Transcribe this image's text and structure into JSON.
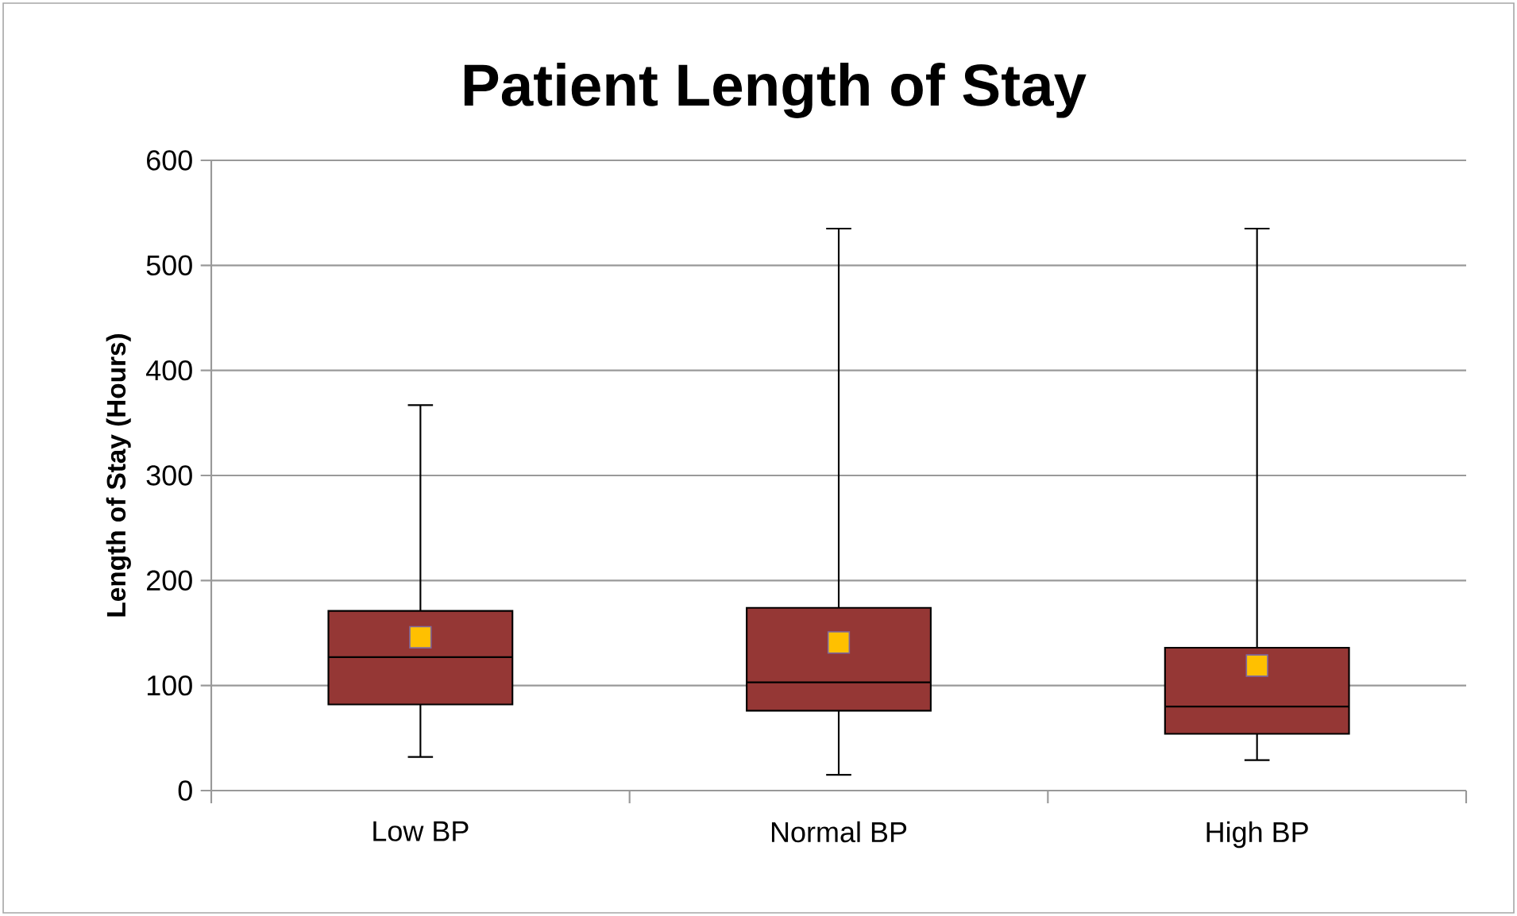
{
  "chart_data": {
    "type": "box",
    "title": "Patient Length of Stay",
    "ylabel": "Length of Stay (Hours)",
    "categories": [
      "Low BP",
      "Normal BP",
      "High BP"
    ],
    "series": [
      {
        "color": "#953735",
        "boxes": [
          {
            "low": 32,
            "q1": 82,
            "median": 127,
            "q3": 171,
            "high": 367,
            "mean": 146
          },
          {
            "low": 15,
            "q1": 76,
            "median": 103,
            "q3": 174,
            "high": 535,
            "mean": 141
          },
          {
            "low": 29,
            "q1": 54,
            "median": 80,
            "q3": 136,
            "high": 535,
            "mean": 119
          }
        ]
      }
    ],
    "ylim": [
      0,
      600
    ],
    "yticks": [
      0,
      100,
      200,
      300,
      400,
      500,
      600
    ],
    "grid": "y",
    "marker": "square"
  }
}
